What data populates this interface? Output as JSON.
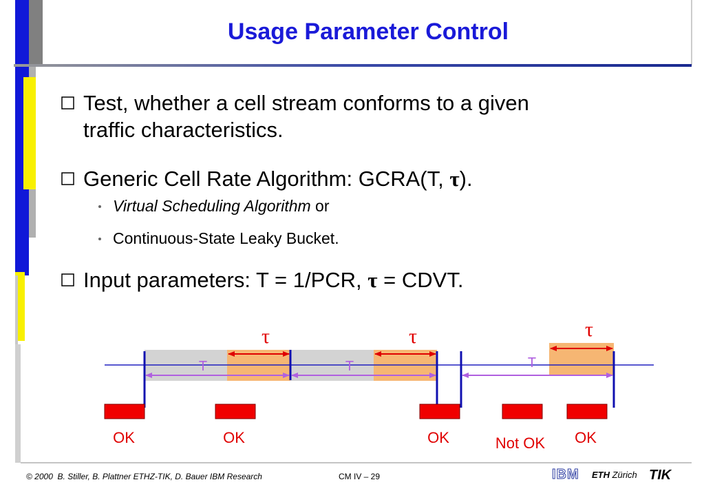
{
  "title": "Usage Parameter Control",
  "bullets": [
    {
      "lines": [
        "Test, whether a cell stream conforms to a given",
        "traffic characteristics."
      ]
    },
    {
      "parts": [
        "Generic Cell Rate Algorithm: GCRA(T, ",
        "τ",
        ")."
      ]
    },
    {
      "parts": [
        "Input parameters: T = 1/PCR, ",
        "τ",
        " = CDVT."
      ]
    }
  ],
  "sub_bullets": [
    {
      "parts": [
        "Virtual Scheduling Algorithm",
        " or"
      ]
    },
    {
      "parts": [
        "Continuous-State Leaky Bucket."
      ]
    }
  ],
  "diagram": {
    "tau_labels": [
      "τ",
      "τ",
      "τ"
    ],
    "period_labels": [
      "T",
      "T",
      "T"
    ],
    "cell_labels": [
      "OK",
      "OK",
      "OK",
      "Not OK",
      "OK"
    ]
  },
  "footer": {
    "copyright": "© 2000  B. Stiller, B. Plattner ETHZ-TIK, D. Bauer IBM Research",
    "page": "CM IV – 29",
    "ibm": "IBM",
    "eth": [
      "ETH",
      " Zürich"
    ],
    "tik": "TIK"
  }
}
